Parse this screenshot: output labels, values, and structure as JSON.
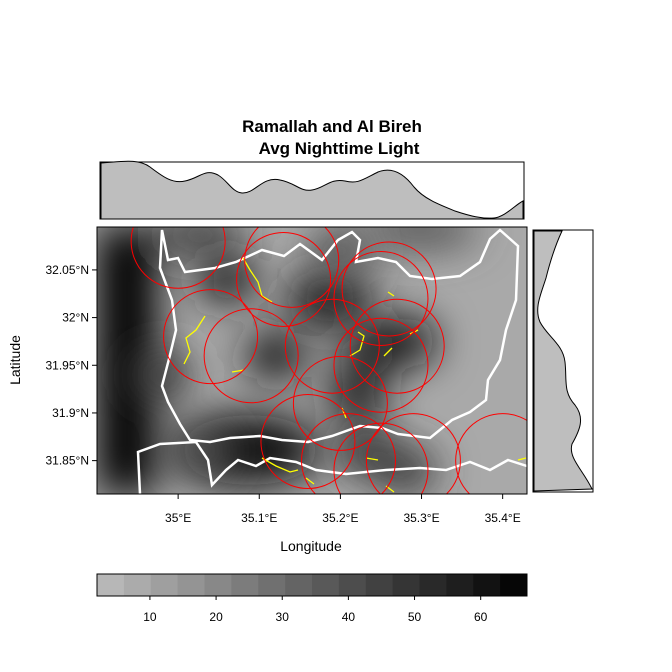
{
  "chart_data": {
    "type": "heatmap",
    "title_line1": "Ramallah and Al Bireh",
    "title_line2": "Avg Nighttime Light",
    "xlabel": "Longitude",
    "ylabel": "Latitude",
    "xlim": [
      34.9,
      35.43
    ],
    "ylim": [
      31.815,
      32.095
    ],
    "x_ticks": [
      {
        "value": 35.0,
        "label": "35°E"
      },
      {
        "value": 35.1,
        "label": "35.1°E"
      },
      {
        "value": 35.2,
        "label": "35.2°E"
      },
      {
        "value": 35.3,
        "label": "35.3°E"
      },
      {
        "value": 35.4,
        "label": "35.4°E"
      }
    ],
    "y_ticks": [
      {
        "value": 31.85,
        "label": "31.85°N"
      },
      {
        "value": 31.9,
        "label": "31.9°N"
      },
      {
        "value": 31.95,
        "label": "31.95°N"
      },
      {
        "value": 32.0,
        "label": "32°N"
      },
      {
        "value": 32.05,
        "label": "32.05°N"
      }
    ],
    "colorbar": {
      "range": [
        2,
        67
      ],
      "ticks": [
        10,
        20,
        30,
        40,
        50,
        60
      ],
      "palette": [
        "#bdbdbd",
        "#000000"
      ]
    },
    "light_hotspots": [
      {
        "lon": 35.03,
        "lat": 31.86,
        "value": 40
      },
      {
        "lon": 35.22,
        "lat": 31.92,
        "value": 60
      },
      {
        "lon": 35.24,
        "lat": 31.97,
        "value": 55
      },
      {
        "lon": 35.28,
        "lat": 31.975,
        "value": 62
      },
      {
        "lon": 35.06,
        "lat": 32.04,
        "value": 58
      },
      {
        "lon": 35.12,
        "lat": 31.96,
        "value": 60
      },
      {
        "lon": 35.23,
        "lat": 31.86,
        "value": 50
      },
      {
        "lon": 34.98,
        "lat": 31.94,
        "value": 45
      },
      {
        "lon": 35.28,
        "lat": 31.84,
        "value": 48
      },
      {
        "lon": 35.2,
        "lat": 32.07,
        "value": 40
      }
    ],
    "buffer_circles": [
      {
        "lon": 35.13,
        "lat": 32.04
      },
      {
        "lon": 35.14,
        "lat": 32.06
      },
      {
        "lon": 35.25,
        "lat": 32.02
      },
      {
        "lon": 35.26,
        "lat": 32.03
      },
      {
        "lon": 35.04,
        "lat": 31.98
      },
      {
        "lon": 35.09,
        "lat": 31.96
      },
      {
        "lon": 35.19,
        "lat": 31.97
      },
      {
        "lon": 35.27,
        "lat": 31.97
      },
      {
        "lon": 35.25,
        "lat": 31.95
      },
      {
        "lon": 35.2,
        "lat": 31.91
      },
      {
        "lon": 35.16,
        "lat": 31.87
      },
      {
        "lon": 35.21,
        "lat": 31.85
      },
      {
        "lon": 35.25,
        "lat": 31.84
      },
      {
        "lon": 35.29,
        "lat": 31.85
      },
      {
        "lon": 35.4,
        "lat": 31.85
      },
      {
        "lon": 35.0,
        "lat": 32.08
      }
    ]
  }
}
